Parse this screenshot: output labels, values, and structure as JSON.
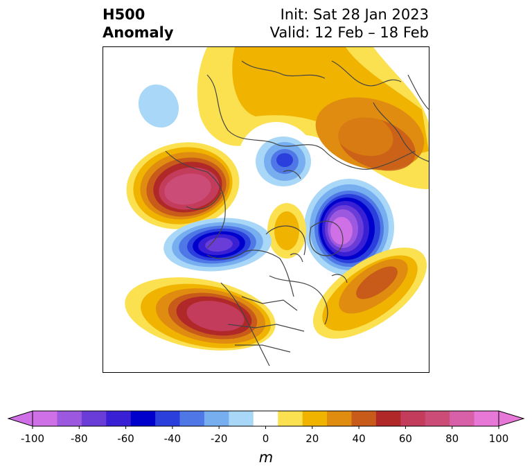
{
  "title": {
    "left_line1": "H500",
    "left_line2": "Anomaly",
    "init": "Init: Sat 28 Jan 2023",
    "valid": "Valid: 12 Feb – 18 Feb"
  },
  "colorbar": {
    "unit": "m",
    "ticks": [
      "-100",
      "-80",
      "-60",
      "-40",
      "-20",
      "0",
      "20",
      "40",
      "60",
      "80",
      "100"
    ],
    "levels": [
      -100,
      -90,
      -80,
      -70,
      -60,
      -50,
      -40,
      -30,
      -20,
      -10,
      10,
      20,
      30,
      40,
      50,
      60,
      70,
      80,
      90,
      100
    ],
    "colors": [
      "#d070e6",
      "#9d58e0",
      "#6a3cd8",
      "#3a20d4",
      "#0000cc",
      "#2a3fdc",
      "#4f78e6",
      "#77aef0",
      "#a9d7f7",
      "#ffffff",
      "#fbe050",
      "#f0b400",
      "#e08c10",
      "#c85a1a",
      "#b02828",
      "#c43c5c",
      "#cc4c78",
      "#d860a8",
      "#e878d8"
    ],
    "under_color": "#d070e6",
    "over_color": "#e878d8"
  },
  "map": {
    "projection": "north-polar-stereographic",
    "land_outline_color": "#444444",
    "anomaly_features": [
      {
        "name": "greenland-north-atlantic-ridge",
        "peak_m": 40
      },
      {
        "name": "eastern-europe-ridge",
        "peak_m": 50
      },
      {
        "name": "central-siberia-trough",
        "peak_m": -50
      },
      {
        "name": "western-europe-trough",
        "peak_m": -100
      },
      {
        "name": "east-siberia-ridge",
        "peak_m": 80
      },
      {
        "name": "bering-sea-trough",
        "peak_m": -90
      },
      {
        "name": "arctic-canada-ridge",
        "peak_m": 15
      },
      {
        "name": "north-pacific-small-trough",
        "peak_m": -20
      },
      {
        "name": "north-atlantic-ridge",
        "peak_m": 50
      },
      {
        "name": "central-pacific-ridge",
        "peak_m": 80
      }
    ]
  }
}
